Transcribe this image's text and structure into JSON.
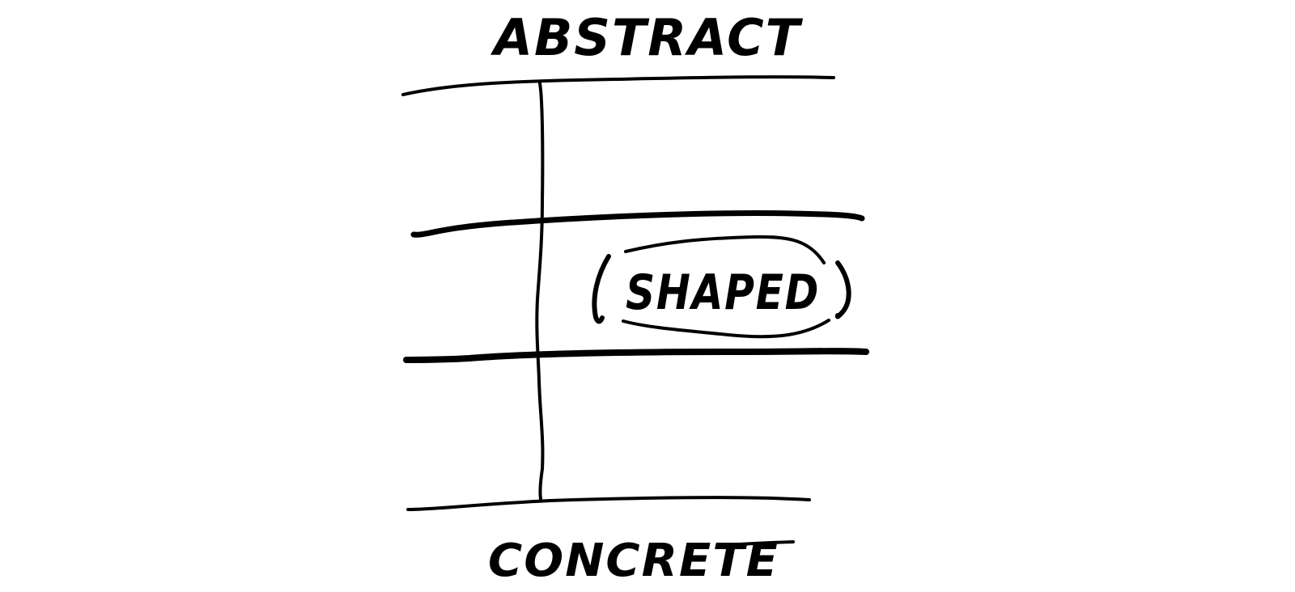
{
  "diagram": {
    "top_label": "ABSTRACT",
    "bottom_label": "CONCRETE",
    "middle_label": "SHAPED",
    "colors": {
      "ink": "#000000",
      "background": "#ffffff"
    }
  }
}
